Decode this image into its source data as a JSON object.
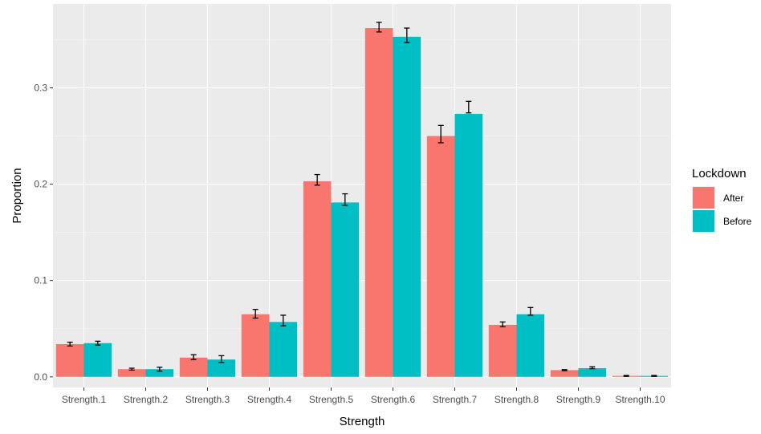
{
  "chart_data": {
    "type": "bar",
    "xlabel": "Strength",
    "ylabel": "Proportion",
    "ylim": [
      -0.011,
      0.387
    ],
    "yticks": [
      0.0,
      0.1,
      0.2,
      0.3
    ],
    "ytick_labels": [
      "0.0",
      "0.1",
      "0.2",
      "0.3"
    ],
    "categories": [
      "Strength.1",
      "Strength.2",
      "Strength.3",
      "Strength.4",
      "Strength.5",
      "Strength.6",
      "Strength.7",
      "Strength.8",
      "Strength.9",
      "Strength.10"
    ],
    "grid": true,
    "legend": {
      "title": "Lockdown",
      "placement": "right"
    },
    "series": [
      {
        "name": "After",
        "color": "#F8766D",
        "values": [
          0.034,
          0.008,
          0.02,
          0.065,
          0.203,
          0.362,
          0.25,
          0.054,
          0.007,
          0.001
        ],
        "err_low": [
          0.032,
          0.007,
          0.018,
          0.061,
          0.199,
          0.358,
          0.243,
          0.052,
          0.0065,
          0.0005
        ],
        "err_high": [
          0.036,
          0.009,
          0.023,
          0.07,
          0.21,
          0.368,
          0.261,
          0.057,
          0.0075,
          0.0015
        ]
      },
      {
        "name": "Before",
        "color": "#00BFC4",
        "values": [
          0.035,
          0.008,
          0.018,
          0.057,
          0.181,
          0.353,
          0.273,
          0.065,
          0.009,
          0.001
        ],
        "err_low": [
          0.033,
          0.006,
          0.015,
          0.053,
          0.178,
          0.347,
          0.274,
          0.064,
          0.0085,
          0.0005
        ],
        "err_high": [
          0.037,
          0.01,
          0.022,
          0.064,
          0.19,
          0.362,
          0.286,
          0.072,
          0.0105,
          0.0015
        ]
      }
    ]
  }
}
